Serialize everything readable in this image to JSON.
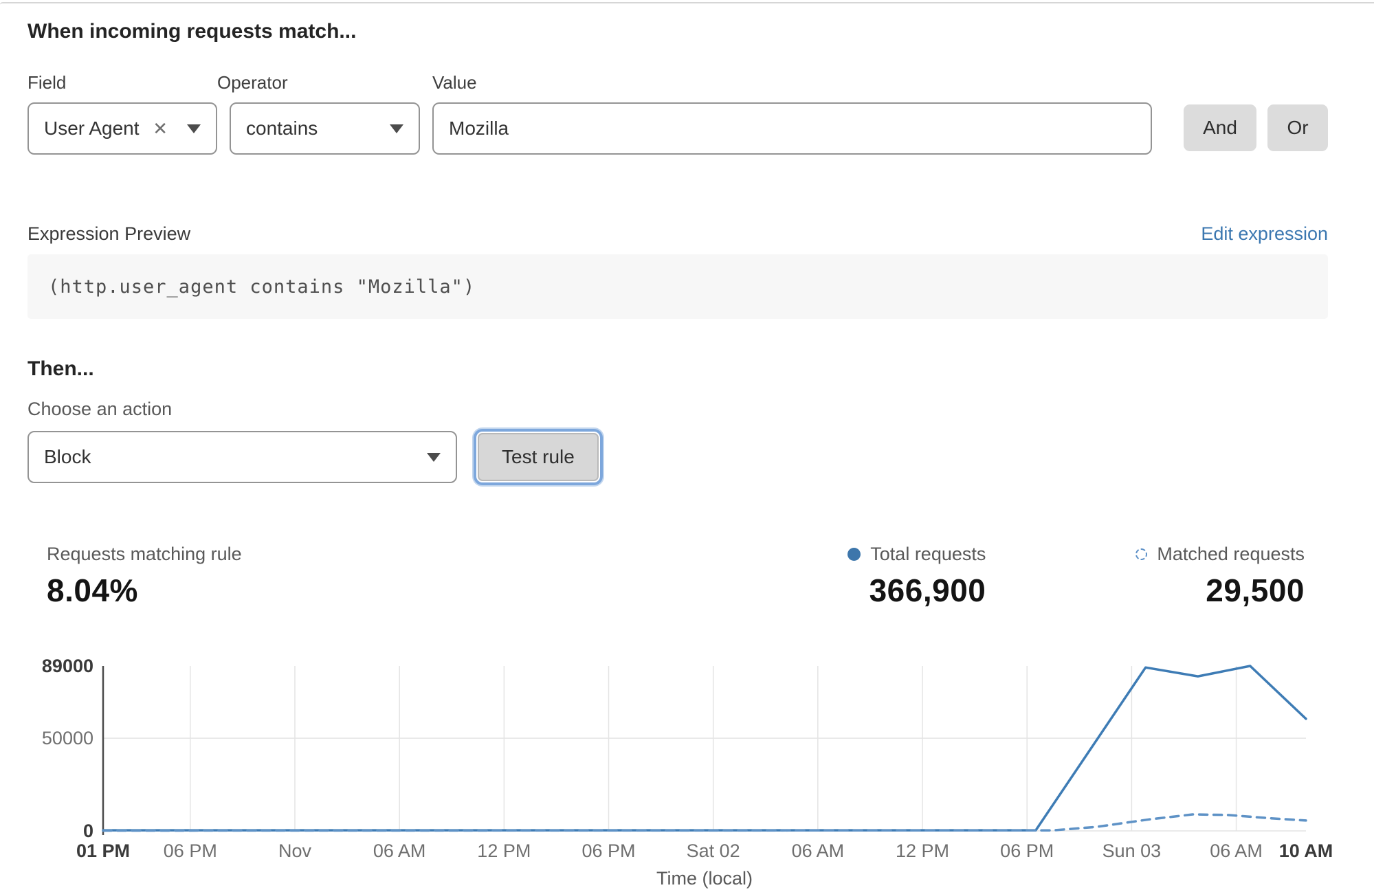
{
  "panel": {
    "match_title": "When incoming requests match...",
    "fields": {
      "field_label": "Field",
      "field_value": "User Agent",
      "operator_label": "Operator",
      "operator_value": "contains",
      "value_label": "Value",
      "value_text": "Mozilla",
      "and_button": "And",
      "or_button": "Or"
    },
    "expression": {
      "label": "Expression Preview",
      "edit_link": "Edit expression",
      "code": "(http.user_agent contains \"Mozilla\")"
    },
    "then_title": "Then...",
    "action": {
      "label": "Choose an action",
      "value": "Block",
      "test_button": "Test rule"
    }
  },
  "stats": {
    "matching": {
      "label": "Requests matching rule",
      "value": "8.04%"
    },
    "total": {
      "label": "Total requests",
      "value": "366,900"
    },
    "matched": {
      "label": "Matched requests",
      "value": "29,500"
    }
  },
  "chart_data": {
    "type": "line",
    "title": "",
    "xlabel": "Time (local)",
    "ylabel": "",
    "ylim": [
      0,
      89000
    ],
    "grid": true,
    "legend_position": "above-right",
    "yticks": [
      {
        "value": 0,
        "label": "0",
        "bold": true
      },
      {
        "value": 50000,
        "label": "50000",
        "bold": false
      },
      {
        "value": 89000,
        "label": "89000",
        "bold": true
      }
    ],
    "xticks": [
      {
        "h": 0,
        "label": "01 PM",
        "bold": true
      },
      {
        "h": 5,
        "label": "06 PM",
        "bold": false
      },
      {
        "h": 11,
        "label": "Nov",
        "bold": false
      },
      {
        "h": 17,
        "label": "06 AM",
        "bold": false
      },
      {
        "h": 23,
        "label": "12 PM",
        "bold": false
      },
      {
        "h": 29,
        "label": "06 PM",
        "bold": false
      },
      {
        "h": 35,
        "label": "Sat 02",
        "bold": false
      },
      {
        "h": 41,
        "label": "06 AM",
        "bold": false
      },
      {
        "h": 47,
        "label": "12 PM",
        "bold": false
      },
      {
        "h": 53,
        "label": "06 PM",
        "bold": false
      },
      {
        "h": 59,
        "label": "Sun 03",
        "bold": false
      },
      {
        "h": 65,
        "label": "06 AM",
        "bold": false
      },
      {
        "h": 69,
        "label": "10 AM",
        "bold": true
      }
    ],
    "series": [
      {
        "name": "Total requests",
        "style": "solid",
        "color": "#3e7cb5",
        "points": [
          [
            0,
            350
          ],
          [
            53.5,
            350
          ],
          [
            59.8,
            88200
          ],
          [
            62.8,
            83400
          ],
          [
            65.8,
            89000
          ],
          [
            69,
            60500
          ]
        ]
      },
      {
        "name": "Matched requests",
        "style": "dashed",
        "color": "#5e92c6",
        "points": [
          [
            0,
            150
          ],
          [
            54.5,
            300
          ],
          [
            57,
            2200
          ],
          [
            60,
            6200
          ],
          [
            62.5,
            8900
          ],
          [
            64.5,
            8600
          ],
          [
            67,
            6800
          ],
          [
            69,
            5600
          ]
        ]
      }
    ],
    "colors": {
      "grid": "#e4e4e4",
      "axis": "#4a4a4a",
      "tick_text": "#6f6f6f",
      "tick_text_bold": "#3a3a3a"
    }
  }
}
